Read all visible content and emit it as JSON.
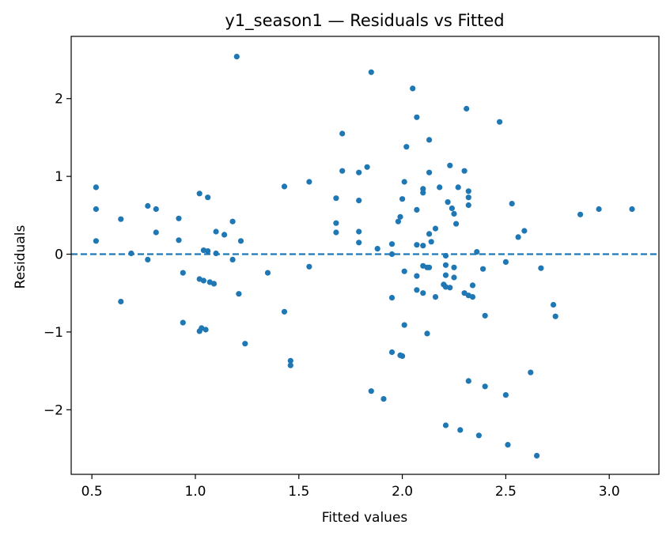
{
  "chart_data": {
    "type": "scatter",
    "title": "y1_season1 — Residuals vs Fitted",
    "xlabel": "Fitted values",
    "ylabel": "Residuals",
    "xlim": [
      0.4,
      3.24
    ],
    "ylim": [
      -2.83,
      2.8
    ],
    "xticks": [
      0.5,
      1.0,
      1.5,
      2.0,
      2.5,
      3.0
    ],
    "xtick_labels": [
      "0.5",
      "1.0",
      "1.5",
      "2.0",
      "2.5",
      "3.0"
    ],
    "yticks": [
      -2,
      -1,
      0,
      1,
      2
    ],
    "ytick_labels": [
      "−2",
      "−1",
      "0",
      "1",
      "2"
    ],
    "grid": false,
    "reference_line": {
      "y": 0,
      "style": "dashed"
    },
    "colors": {
      "points": "#1f77b4",
      "reference_line": "#1f77b4"
    },
    "points": [
      [
        0.52,
        0.86
      ],
      [
        0.52,
        0.58
      ],
      [
        0.52,
        0.17
      ],
      [
        0.64,
        0.45
      ],
      [
        0.64,
        -0.61
      ],
      [
        0.69,
        0.01
      ],
      [
        0.77,
        0.62
      ],
      [
        0.77,
        -0.07
      ],
      [
        0.81,
        0.58
      ],
      [
        0.81,
        0.28
      ],
      [
        0.92,
        0.46
      ],
      [
        0.92,
        0.18
      ],
      [
        0.94,
        -0.24
      ],
      [
        0.94,
        -0.88
      ],
      [
        1.02,
        0.78
      ],
      [
        1.02,
        -0.32
      ],
      [
        1.02,
        -0.99
      ],
      [
        1.03,
        -0.95
      ],
      [
        1.04,
        0.05
      ],
      [
        1.04,
        -0.34
      ],
      [
        1.05,
        -0.97
      ],
      [
        1.06,
        0.73
      ],
      [
        1.06,
        0.04
      ],
      [
        1.07,
        -0.36
      ],
      [
        1.09,
        -0.38
      ],
      [
        1.1,
        0.01
      ],
      [
        1.1,
        0.29
      ],
      [
        1.14,
        0.25
      ],
      [
        1.18,
        0.42
      ],
      [
        1.18,
        -0.07
      ],
      [
        1.2,
        2.54
      ],
      [
        1.21,
        -0.51
      ],
      [
        1.22,
        0.17
      ],
      [
        1.24,
        -1.15
      ],
      [
        1.35,
        -0.24
      ],
      [
        1.43,
        0.87
      ],
      [
        1.43,
        -0.74
      ],
      [
        1.46,
        -1.37
      ],
      [
        1.46,
        -1.43
      ],
      [
        1.55,
        0.93
      ],
      [
        1.55,
        -0.16
      ],
      [
        1.68,
        0.72
      ],
      [
        1.68,
        0.4
      ],
      [
        1.68,
        0.28
      ],
      [
        1.71,
        1.55
      ],
      [
        1.71,
        1.07
      ],
      [
        1.79,
        1.05
      ],
      [
        1.79,
        0.69
      ],
      [
        1.79,
        0.29
      ],
      [
        1.79,
        0.15
      ],
      [
        1.83,
        1.12
      ],
      [
        1.85,
        2.34
      ],
      [
        1.85,
        -1.76
      ],
      [
        1.88,
        0.07
      ],
      [
        1.91,
        -1.86
      ],
      [
        1.95,
        0.13
      ],
      [
        1.95,
        0.0
      ],
      [
        1.95,
        -0.56
      ],
      [
        1.95,
        -1.26
      ],
      [
        1.98,
        0.42
      ],
      [
        1.99,
        0.48
      ],
      [
        1.99,
        -1.3
      ],
      [
        2.0,
        0.71
      ],
      [
        2.0,
        -1.31
      ],
      [
        2.01,
        0.93
      ],
      [
        2.01,
        -0.22
      ],
      [
        2.01,
        -0.91
      ],
      [
        2.02,
        1.38
      ],
      [
        2.05,
        2.13
      ],
      [
        2.07,
        1.76
      ],
      [
        2.07,
        0.57
      ],
      [
        2.07,
        0.12
      ],
      [
        2.07,
        -0.28
      ],
      [
        2.07,
        -0.46
      ],
      [
        2.1,
        0.84
      ],
      [
        2.1,
        0.79
      ],
      [
        2.1,
        0.11
      ],
      [
        2.1,
        -0.15
      ],
      [
        2.1,
        -0.5
      ],
      [
        2.12,
        -0.17
      ],
      [
        2.12,
        -1.02
      ],
      [
        2.13,
        1.47
      ],
      [
        2.13,
        1.05
      ],
      [
        2.13,
        0.26
      ],
      [
        2.13,
        -0.17
      ],
      [
        2.14,
        0.16
      ],
      [
        2.16,
        0.33
      ],
      [
        2.16,
        -0.55
      ],
      [
        2.18,
        0.86
      ],
      [
        2.2,
        -0.39
      ],
      [
        2.21,
        -0.02
      ],
      [
        2.21,
        -0.14
      ],
      [
        2.21,
        -0.27
      ],
      [
        2.21,
        -0.42
      ],
      [
        2.21,
        -2.2
      ],
      [
        2.22,
        0.67
      ],
      [
        2.23,
        1.14
      ],
      [
        2.23,
        -0.43
      ],
      [
        2.24,
        0.59
      ],
      [
        2.25,
        0.52
      ],
      [
        2.25,
        -0.17
      ],
      [
        2.25,
        -0.3
      ],
      [
        2.26,
        0.39
      ],
      [
        2.27,
        0.86
      ],
      [
        2.28,
        -2.26
      ],
      [
        2.3,
        1.07
      ],
      [
        2.3,
        -0.5
      ],
      [
        2.31,
        1.87
      ],
      [
        2.32,
        0.81
      ],
      [
        2.32,
        0.73
      ],
      [
        2.32,
        0.63
      ],
      [
        2.32,
        -0.53
      ],
      [
        2.32,
        -1.63
      ],
      [
        2.34,
        -0.4
      ],
      [
        2.34,
        -0.55
      ],
      [
        2.36,
        0.03
      ],
      [
        2.37,
        -2.33
      ],
      [
        2.39,
        -0.19
      ],
      [
        2.4,
        -0.79
      ],
      [
        2.4,
        -1.7
      ],
      [
        2.47,
        1.7
      ],
      [
        2.5,
        -0.1
      ],
      [
        2.5,
        -1.81
      ],
      [
        2.51,
        -2.45
      ],
      [
        2.53,
        0.65
      ],
      [
        2.56,
        0.22
      ],
      [
        2.59,
        0.3
      ],
      [
        2.62,
        -1.52
      ],
      [
        2.65,
        -2.59
      ],
      [
        2.67,
        -0.18
      ],
      [
        2.73,
        -0.65
      ],
      [
        2.74,
        -0.8
      ],
      [
        2.86,
        0.51
      ],
      [
        2.95,
        0.58
      ],
      [
        3.11,
        0.58
      ]
    ]
  }
}
